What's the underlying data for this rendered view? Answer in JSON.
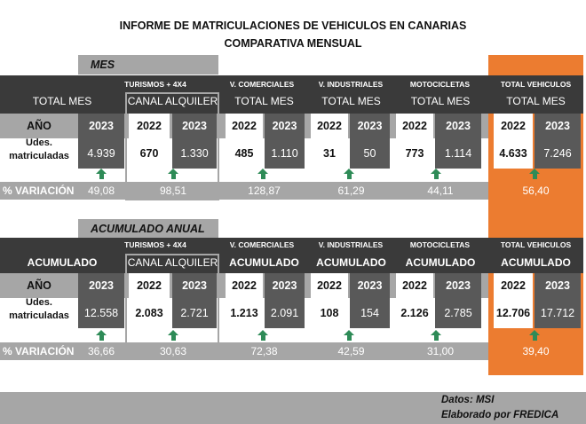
{
  "title_line1": "INFORME DE MATRICULACIONES DE VEHICULOS EN CANARIAS",
  "title_line2": "COMPARATIVA MENSUAL",
  "mes": {
    "section_label": "MES",
    "groups": {
      "turismos": "TURISMOS + 4X4",
      "comerciales": "V. COMERCIALES",
      "industriales": "V. INDUSTRIALES",
      "motos": "MOTOCICLETAS",
      "total": "TOTAL VEHICULOS"
    },
    "subheaders": {
      "total_mes_1": "TOTAL MES",
      "canal": "CANAL ALQUILER",
      "comerciales": "TOTAL MES",
      "industriales": "TOTAL MES",
      "motos": "TOTAL MES",
      "total": "TOTAL MES"
    },
    "year_label": "AÑO",
    "units_label_1": "Udes.",
    "units_label_2": "matriculadas",
    "years": {
      "tm_2023": "2023",
      "ca_2022": "2022",
      "ca_2023": "2023",
      "vc_2022": "2022",
      "vc_2023": "2023",
      "vi_2022": "2022",
      "vi_2023": "2023",
      "mo_2022": "2022",
      "mo_2023": "2023",
      "tv_2022": "2022",
      "tv_2023": "2023"
    },
    "values": {
      "tm_2023": "4.939",
      "ca_2022": "670",
      "ca_2023": "1.330",
      "vc_2022": "485",
      "vc_2023": "1.110",
      "vi_2022": "31",
      "vi_2023": "50",
      "mo_2022": "773",
      "mo_2023": "1.114",
      "tv_2022": "4.633",
      "tv_2023": "7.246"
    },
    "variation_label": "% VARIACIÓN",
    "variation": {
      "tm": "49,08",
      "ca": "98,51",
      "vc": "128,87",
      "vi": "61,29",
      "mo": "44,11",
      "tv": "56,40"
    }
  },
  "acumulado": {
    "section_label": "ACUMULADO ANUAL",
    "groups": {
      "turismos": "TURISMOS + 4X4",
      "comerciales": "V. COMERCIALES",
      "industriales": "V. INDUSTRIALES",
      "motos": "MOTOCICLETAS",
      "total": "TOTAL VEHICULOS"
    },
    "subheaders": {
      "acum_1": "ACUMULADO",
      "canal": "CANAL ALQUILER",
      "comerciales": "ACUMULADO",
      "industriales": "ACUMULADO",
      "motos": "ACUMULADO",
      "total": "ACUMULADO"
    },
    "year_label": "AÑO",
    "units_label_1": "Udes.",
    "units_label_2": "matriculadas",
    "years": {
      "tm_2023": "2023",
      "ca_2022": "2022",
      "ca_2023": "2023",
      "vc_2022": "2022",
      "vc_2023": "2023",
      "vi_2022": "2022",
      "vi_2023": "2023",
      "mo_2022": "2022",
      "mo_2023": "2023",
      "tv_2022": "2022",
      "tv_2023": "2023"
    },
    "values": {
      "tm_2023": "12.558",
      "ca_2022": "2.083",
      "ca_2023": "2.721",
      "vc_2022": "1.213",
      "vc_2023": "2.091",
      "vi_2022": "108",
      "vi_2023": "154",
      "mo_2022": "2.126",
      "mo_2023": "2.785",
      "tv_2022": "12.706",
      "tv_2023": "17.712"
    },
    "variation_label": "% VARIACIÓN",
    "variation": {
      "tm": "36,66",
      "ca": "30,63",
      "vc": "72,38",
      "vi": "42,59",
      "mo": "31,00",
      "tv": "39,40"
    }
  },
  "footer": {
    "datos": "Datos: MSI",
    "elaborado": "Elaborado por  FREDICA"
  },
  "colors": {
    "accent_orange": "#ec7c30",
    "band_dark": "#3a3a3a",
    "band_gray": "#a6a6a6",
    "arrow_green": "#2e8b57"
  }
}
